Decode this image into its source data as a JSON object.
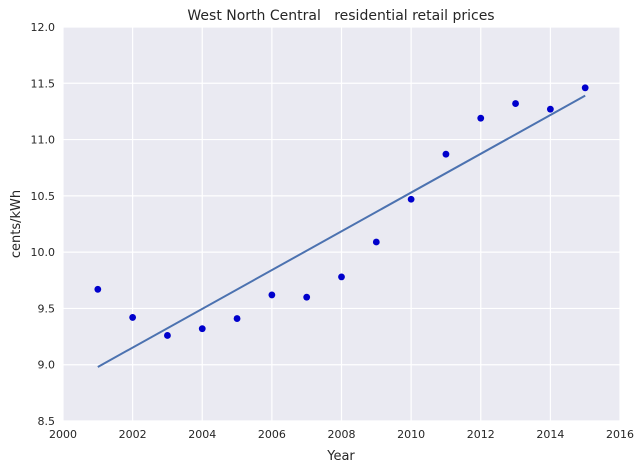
{
  "chart_data": {
    "type": "scatter",
    "title": "West North Central   residential retail prices",
    "xlabel": "Year",
    "ylabel": "cents/kWh",
    "xlim": [
      2000,
      2016
    ],
    "ylim": [
      8.5,
      12.0
    ],
    "xticks": [
      2000,
      2002,
      2004,
      2006,
      2008,
      2010,
      2012,
      2014,
      2016
    ],
    "yticks": [
      8.5,
      9.0,
      9.5,
      10.0,
      10.5,
      11.0,
      11.5,
      12.0
    ],
    "grid": true,
    "points": {
      "x": [
        2001,
        2002,
        2003,
        2004,
        2005,
        2006,
        2007,
        2008,
        2009,
        2010,
        2011,
        2012,
        2013,
        2014,
        2015
      ],
      "y": [
        9.67,
        9.42,
        9.26,
        9.32,
        9.41,
        9.62,
        9.6,
        9.78,
        10.09,
        10.47,
        10.87,
        11.19,
        11.32,
        11.27,
        11.46
      ],
      "color": "#0000cc"
    },
    "trend_line": {
      "x": [
        2001,
        2015
      ],
      "y": [
        8.98,
        11.39
      ],
      "color": "#4c72b0"
    },
    "background_color": "#eaeaf2",
    "grid_color": "#ffffff"
  }
}
